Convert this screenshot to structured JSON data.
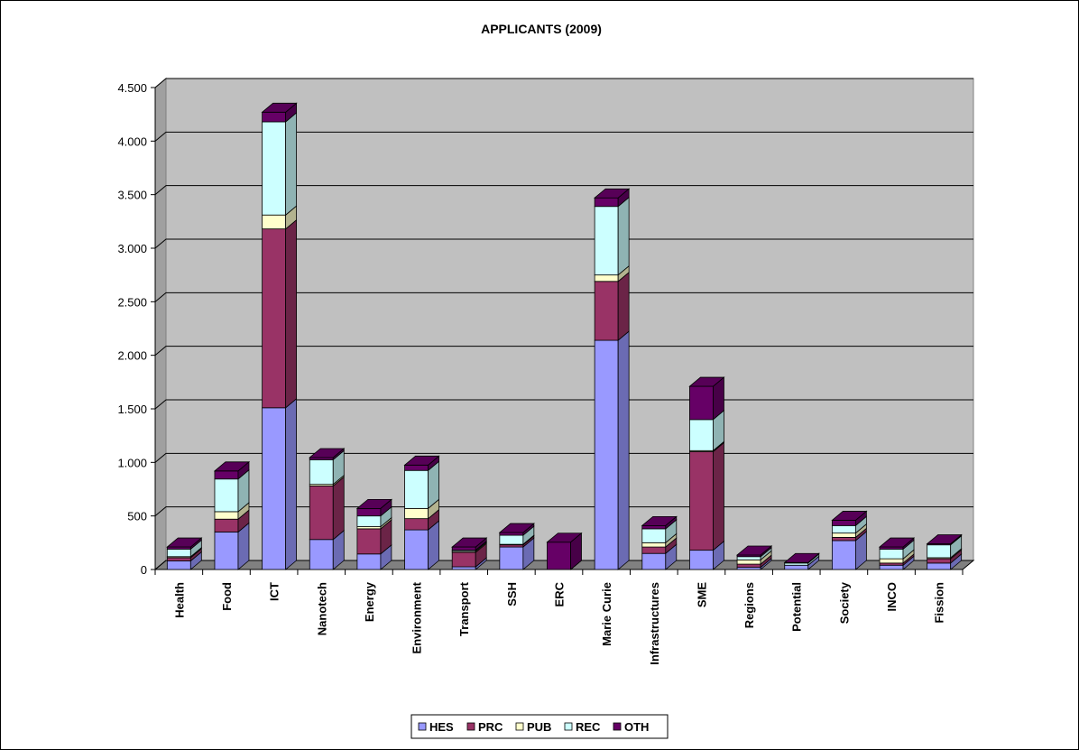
{
  "chart_data": {
    "type": "bar3d_stacked",
    "title": "APPLICANTS (2009)",
    "categories": [
      "Health",
      "Food",
      "ICT",
      "Nanotech",
      "Energy",
      "Environment",
      "Transport",
      "SSH",
      "ERC",
      "Marie Curie",
      "Infrastructures",
      "SME",
      "Regions",
      "Potential",
      "Society",
      "INCO",
      "Fission"
    ],
    "series": [
      {
        "name": "HES",
        "color": "#9999ff",
        "values": [
          80,
          350,
          1510,
          280,
          145,
          370,
          25,
          210,
          0,
          2140,
          150,
          180,
          20,
          40,
          270,
          40,
          60
        ]
      },
      {
        "name": "PRC",
        "color": "#993366",
        "values": [
          30,
          120,
          1670,
          500,
          235,
          105,
          135,
          20,
          0,
          550,
          60,
          920,
          30,
          0,
          30,
          20,
          40
        ]
      },
      {
        "name": "PUB",
        "color": "#ffffcc",
        "values": [
          10,
          70,
          130,
          15,
          20,
          95,
          10,
          5,
          0,
          60,
          40,
          10,
          40,
          0,
          40,
          40,
          10
        ]
      },
      {
        "name": "REC",
        "color": "#ccffff",
        "values": [
          70,
          305,
          870,
          230,
          100,
          355,
          10,
          85,
          0,
          640,
          130,
          290,
          30,
          20,
          70,
          90,
          120
        ]
      },
      {
        "name": "OTH",
        "color": "#660066",
        "values": [
          20,
          75,
          90,
          20,
          70,
          50,
          30,
          25,
          255,
          80,
          30,
          310,
          15,
          5,
          50,
          20,
          10
        ]
      }
    ],
    "ylim": [
      0,
      4500
    ],
    "yticks": [
      0,
      500,
      {
        "value": 1000,
        "label": "1.000"
      },
      {
        "value": 1500,
        "label": "1.500"
      },
      {
        "value": 2000,
        "label": "2.000"
      },
      {
        "value": 2500,
        "label": "2.500"
      },
      {
        "value": 3000,
        "label": "3.000"
      },
      {
        "value": 3500,
        "label": "3.500"
      },
      {
        "value": 4000,
        "label": "4.000"
      },
      {
        "value": 4500,
        "label": "4.500"
      }
    ],
    "grid": true,
    "legend": "bottom"
  }
}
